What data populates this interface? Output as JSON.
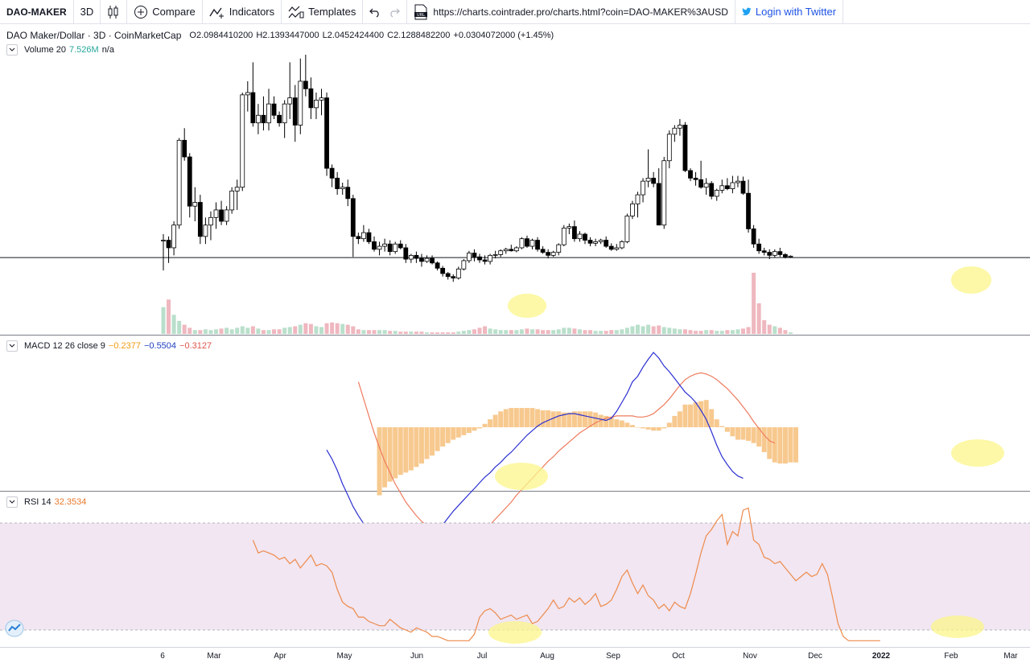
{
  "toolbar": {
    "symbol": "DAO-MAKER",
    "interval": "3D",
    "compare_label": "Compare",
    "indicators_label": "Indicators",
    "templates_label": "Templates",
    "url": "https://charts.cointrader.pro/charts.html?coin=DAO-MAKER%3AUSD",
    "twitter_label": "Login with Twitter"
  },
  "legend": {
    "title": "DAO Maker/Dollar · 3D · CoinMarketCap",
    "o_label": "O",
    "o_value": "2.0984410200",
    "h_label": "H",
    "h_value": "2.1393447000",
    "l_label": "L",
    "l_value": "2.0452424400",
    "c_label": "C",
    "c_value": "2.1288482200",
    "change": "+0.0304072000 (+1.45%)",
    "volume_name": "Volume 20",
    "volume_value": "7.526M",
    "volume_ma": "n/a",
    "macd_name": "MACD 12 26 close 9",
    "macd_hist": "−0.2377",
    "macd_line": "−0.5504",
    "macd_signal": "−0.3127",
    "rsi_name": "RSI 14",
    "rsi_value": "32.3534"
  },
  "x_axis": [
    "6",
    "Mar",
    "Apr",
    "May",
    "Jun",
    "Jul",
    "Aug",
    "Sep",
    "Oct",
    "Nov",
    "Dec",
    "2022",
    "Feb",
    "Mar"
  ],
  "colors": {
    "up_body": "#ffffff",
    "down_body": "#000000",
    "wick": "#000000",
    "vol_up": "#b9dfcb",
    "vol_down": "#efb7bf",
    "macd_line": "#2b2fd1",
    "signal_line": "#ee7b5e",
    "hist": "#f7c98f",
    "rsi_line": "#ee8a4c",
    "rsi_band": "#f1e6f1",
    "highlight": "#fbf58a",
    "macd_hist_text": "#f39c12",
    "macd_line_text": "#1f3fc1",
    "macd_signal_text": "#e0544c",
    "volume_value_text": "#26a69a",
    "rsi_value_text": "#e8772a"
  },
  "chart_data": {
    "type": "candlestick",
    "interval": "3D",
    "horizontal_line": 1.87,
    "candles": [
      [
        2.1,
        2.18,
        1.7,
        2.1
      ],
      [
        2.1,
        2.15,
        1.8,
        2.0
      ],
      [
        2.0,
        2.35,
        1.9,
        2.3
      ],
      [
        2.3,
        3.45,
        2.25,
        3.42
      ],
      [
        3.42,
        3.58,
        3.15,
        3.2
      ],
      [
        3.2,
        3.25,
        2.4,
        2.55
      ],
      [
        2.55,
        2.8,
        2.35,
        2.6
      ],
      [
        2.6,
        2.7,
        2.05,
        2.15
      ],
      [
        2.15,
        2.4,
        2.05,
        2.3
      ],
      [
        2.3,
        2.48,
        2.1,
        2.4
      ],
      [
        2.4,
        2.6,
        2.25,
        2.5
      ],
      [
        2.5,
        2.62,
        2.3,
        2.35
      ],
      [
        2.35,
        2.55,
        2.3,
        2.5
      ],
      [
        2.5,
        2.8,
        2.45,
        2.75
      ],
      [
        2.75,
        2.9,
        2.5,
        2.8
      ],
      [
        2.8,
        4.05,
        2.75,
        4.02
      ],
      [
        4.02,
        4.2,
        3.8,
        4.05
      ],
      [
        4.05,
        4.45,
        3.6,
        3.65
      ],
      [
        3.65,
        3.9,
        3.5,
        3.75
      ],
      [
        3.75,
        4.0,
        3.55,
        3.65
      ],
      [
        3.65,
        4.1,
        3.55,
        3.9
      ],
      [
        3.9,
        4.0,
        3.7,
        3.75
      ],
      [
        3.75,
        3.8,
        3.6,
        3.65
      ],
      [
        3.65,
        3.95,
        3.45,
        3.9
      ],
      [
        3.9,
        4.45,
        3.7,
        3.98
      ],
      [
        3.98,
        4.15,
        3.4,
        3.62
      ],
      [
        3.62,
        4.5,
        3.5,
        4.2
      ],
      [
        4.2,
        4.55,
        4.0,
        4.1
      ],
      [
        4.1,
        4.25,
        3.7,
        3.85
      ],
      [
        3.85,
        4.05,
        3.7,
        3.95
      ],
      [
        3.95,
        4.1,
        3.75,
        3.98
      ],
      [
        3.98,
        4.05,
        2.95,
        3.05
      ],
      [
        3.05,
        3.1,
        2.8,
        2.92
      ],
      [
        2.92,
        3.0,
        2.7,
        2.78
      ],
      [
        2.78,
        2.86,
        2.7,
        2.8
      ],
      [
        2.8,
        2.9,
        2.55,
        2.65
      ],
      [
        2.65,
        2.7,
        1.88,
        2.15
      ],
      [
        2.15,
        2.2,
        2.05,
        2.12
      ],
      [
        2.12,
        2.3,
        2.08,
        2.2
      ],
      [
        2.2,
        2.25,
        2.05,
        2.08
      ],
      [
        2.08,
        2.15,
        1.95,
        1.98
      ],
      [
        1.98,
        2.08,
        1.9,
        2.02
      ],
      [
        2.02,
        2.12,
        1.95,
        2.05
      ],
      [
        2.05,
        2.1,
        1.9,
        1.95
      ],
      [
        1.95,
        2.08,
        1.92,
        2.05
      ],
      [
        2.05,
        2.1,
        1.98,
        2.0
      ],
      [
        2.0,
        2.05,
        1.8,
        1.85
      ],
      [
        1.85,
        1.92,
        1.8,
        1.9
      ],
      [
        1.9,
        1.95,
        1.8,
        1.86
      ],
      [
        1.86,
        1.92,
        1.75,
        1.82
      ],
      [
        1.82,
        1.9,
        1.8,
        1.86
      ],
      [
        1.86,
        1.9,
        1.78,
        1.8
      ],
      [
        1.8,
        1.82,
        1.7,
        1.73
      ],
      [
        1.73,
        1.76,
        1.62,
        1.66
      ],
      [
        1.66,
        1.68,
        1.58,
        1.62
      ],
      [
        1.62,
        1.65,
        1.55,
        1.6
      ],
      [
        1.6,
        1.75,
        1.58,
        1.72
      ],
      [
        1.72,
        1.85,
        1.7,
        1.83
      ],
      [
        1.83,
        1.96,
        1.8,
        1.93
      ],
      [
        1.93,
        1.98,
        1.82,
        1.88
      ],
      [
        1.88,
        1.92,
        1.8,
        1.84
      ],
      [
        1.84,
        1.9,
        1.78,
        1.82
      ],
      [
        1.82,
        1.92,
        1.78,
        1.9
      ],
      [
        1.9,
        1.96,
        1.86,
        1.91
      ],
      [
        1.91,
        1.98,
        1.88,
        1.96
      ],
      [
        1.96,
        2.0,
        1.92,
        1.98
      ],
      [
        1.98,
        2.04,
        1.95,
        1.96
      ],
      [
        1.96,
        2.02,
        1.94,
        2.0
      ],
      [
        2.0,
        2.14,
        1.98,
        2.12
      ],
      [
        2.12,
        2.16,
        2.0,
        2.02
      ],
      [
        2.02,
        2.12,
        1.98,
        2.1
      ],
      [
        2.1,
        2.14,
        1.95,
        1.98
      ],
      [
        1.98,
        2.02,
        1.92,
        1.94
      ],
      [
        1.94,
        1.98,
        1.86,
        1.9
      ],
      [
        1.9,
        1.96,
        1.88,
        1.94
      ],
      [
        1.94,
        2.06,
        1.9,
        2.04
      ],
      [
        2.04,
        2.3,
        2.02,
        2.26
      ],
      [
        2.26,
        2.32,
        2.18,
        2.28
      ],
      [
        2.28,
        2.36,
        2.08,
        2.12
      ],
      [
        2.12,
        2.22,
        2.08,
        2.18
      ],
      [
        2.18,
        2.2,
        2.05,
        2.1
      ],
      [
        2.1,
        2.14,
        2.02,
        2.06
      ],
      [
        2.06,
        2.12,
        2.02,
        2.08
      ],
      [
        2.08,
        2.12,
        2.05,
        2.1
      ],
      [
        2.1,
        2.15,
        2.0,
        2.02
      ],
      [
        2.02,
        2.06,
        1.96,
        1.98
      ],
      [
        1.98,
        2.05,
        1.96,
        2.0
      ],
      [
        2.0,
        2.1,
        1.98,
        2.08
      ],
      [
        2.08,
        2.45,
        2.06,
        2.42
      ],
      [
        2.42,
        2.62,
        2.38,
        2.58
      ],
      [
        2.58,
        2.74,
        2.4,
        2.7
      ],
      [
        2.7,
        2.92,
        2.6,
        2.88
      ],
      [
        2.88,
        3.3,
        2.8,
        2.92
      ],
      [
        2.92,
        3.0,
        2.8,
        2.85
      ],
      [
        2.85,
        3.05,
        2.3,
        2.3
      ],
      [
        2.3,
        3.2,
        2.25,
        3.15
      ],
      [
        3.15,
        3.55,
        3.05,
        3.5
      ],
      [
        3.5,
        3.62,
        3.4,
        3.58
      ],
      [
        3.58,
        3.7,
        3.48,
        3.62
      ],
      [
        3.62,
        3.66,
        3.0,
        3.02
      ],
      [
        3.02,
        3.05,
        2.88,
        2.92
      ],
      [
        2.92,
        3.0,
        2.82,
        2.9
      ],
      [
        2.9,
        3.15,
        2.78,
        2.8
      ],
      [
        2.8,
        2.92,
        2.7,
        2.85
      ],
      [
        2.85,
        2.88,
        2.64,
        2.68
      ],
      [
        2.68,
        2.78,
        2.62,
        2.76
      ],
      [
        2.76,
        2.9,
        2.72,
        2.82
      ],
      [
        2.82,
        2.92,
        2.76,
        2.78
      ],
      [
        2.78,
        2.95,
        2.72,
        2.86
      ],
      [
        2.86,
        2.95,
        2.8,
        2.88
      ],
      [
        2.88,
        2.94,
        2.7,
        2.72
      ],
      [
        2.72,
        2.9,
        2.2,
        2.25
      ],
      [
        2.25,
        2.3,
        2.0,
        2.05
      ],
      [
        2.05,
        2.12,
        1.92,
        1.96
      ],
      [
        1.96,
        2.0,
        1.9,
        1.94
      ],
      [
        1.94,
        1.98,
        1.85,
        1.9
      ],
      [
        1.9,
        1.98,
        1.87,
        1.95
      ],
      [
        1.95,
        2.0,
        1.88,
        1.91
      ],
      [
        1.91,
        1.93,
        1.86,
        1.88
      ],
      [
        1.88,
        1.9,
        1.87,
        1.89
      ]
    ],
    "volume": [
      0.35,
      0.45,
      0.25,
      0.17,
      0.12,
      0.08,
      0.05,
      0.05,
      0.06,
      0.05,
      0.06,
      0.07,
      0.08,
      0.06,
      0.08,
      0.1,
      0.08,
      0.1,
      0.07,
      0.05,
      0.05,
      0.06,
      0.06,
      0.08,
      0.09,
      0.1,
      0.12,
      0.14,
      0.13,
      0.1,
      0.09,
      0.14,
      0.15,
      0.14,
      0.13,
      0.12,
      0.1,
      0.06,
      0.05,
      0.05,
      0.05,
      0.05,
      0.05,
      0.04,
      0.04,
      0.03,
      0.03,
      0.03,
      0.03,
      0.03,
      0.02,
      0.02,
      0.02,
      0.02,
      0.02,
      0.02,
      0.03,
      0.04,
      0.05,
      0.06,
      0.08,
      0.1,
      0.07,
      0.06,
      0.05,
      0.05,
      0.05,
      0.05,
      0.06,
      0.07,
      0.06,
      0.06,
      0.05,
      0.05,
      0.05,
      0.06,
      0.08,
      0.08,
      0.07,
      0.06,
      0.05,
      0.05,
      0.04,
      0.04,
      0.04,
      0.05,
      0.05,
      0.06,
      0.08,
      0.1,
      0.12,
      0.1,
      0.12,
      0.1,
      0.11,
      0.09,
      0.08,
      0.07,
      0.06,
      0.06,
      0.05,
      0.04,
      0.04,
      0.05,
      0.05,
      0.04,
      0.04,
      0.05,
      0.05,
      0.06,
      0.07,
      0.09,
      0.8,
      0.4,
      0.18,
      0.12,
      0.1,
      0.08,
      0.05,
      0.02
    ],
    "macd": [
      -0.2,
      -0.28,
      -0.38,
      -0.5,
      -0.6,
      -0.7,
      -0.78,
      -0.85,
      -0.9,
      -0.94,
      -0.97,
      -0.99,
      -1.0,
      -1.01,
      -1.01,
      -1.02,
      -1.02,
      -1.02,
      -1.01,
      -1.0,
      -0.97,
      -0.92,
      -0.86,
      -0.8,
      -0.74,
      -0.69,
      -0.64,
      -0.59,
      -0.54,
      -0.49,
      -0.44,
      -0.4,
      -0.35,
      -0.31,
      -0.26,
      -0.22,
      -0.17,
      -0.12,
      -0.07,
      -0.03,
      0.01,
      0.04,
      0.06,
      0.08,
      0.1,
      0.11,
      0.12,
      0.12,
      0.11,
      0.1,
      0.09,
      0.08,
      0.07,
      0.06,
      0.08,
      0.14,
      0.22,
      0.3,
      0.4,
      0.45,
      0.53,
      0.6,
      0.66,
      0.61,
      0.54,
      0.49,
      0.43,
      0.37,
      0.31,
      0.27,
      0.22,
      0.15,
      0.07,
      -0.04,
      -0.16,
      -0.26,
      -0.33,
      -0.39,
      -0.43,
      -0.45
    ],
    "macd_signal": [
      0.4,
      0.25,
      0.1,
      -0.05,
      -0.18,
      -0.3,
      -0.4,
      -0.5,
      -0.58,
      -0.66,
      -0.72,
      -0.78,
      -0.83,
      -0.87,
      -0.9,
      -0.93,
      -0.95,
      -0.97,
      -0.98,
      -0.99,
      -1.0,
      -0.99,
      -0.97,
      -0.94,
      -0.9,
      -0.86,
      -0.81,
      -0.76,
      -0.71,
      -0.66,
      -0.6,
      -0.55,
      -0.5,
      -0.45,
      -0.4,
      -0.35,
      -0.3,
      -0.26,
      -0.21,
      -0.17,
      -0.13,
      -0.09,
      -0.05,
      -0.02,
      0.01,
      0.04,
      0.06,
      0.08,
      0.09,
      0.1,
      0.1,
      0.1,
      0.1,
      0.09,
      0.09,
      0.1,
      0.12,
      0.16,
      0.2,
      0.25,
      0.31,
      0.37,
      0.42,
      0.45,
      0.47,
      0.48,
      0.47,
      0.45,
      0.42,
      0.38,
      0.34,
      0.29,
      0.24,
      0.18,
      0.12,
      0.05,
      -0.01,
      -0.07,
      -0.12,
      -0.14
    ],
    "macd_hist": [
      -0.6,
      -0.53,
      -0.48,
      -0.45,
      -0.42,
      -0.4,
      -0.38,
      -0.35,
      -0.32,
      -0.28,
      -0.25,
      -0.21,
      -0.17,
      -0.14,
      -0.11,
      -0.09,
      -0.07,
      -0.05,
      -0.03,
      -0.01,
      0.03,
      0.07,
      0.11,
      0.14,
      0.16,
      0.17,
      0.17,
      0.17,
      0.17,
      0.17,
      0.16,
      0.15,
      0.15,
      0.14,
      0.14,
      0.13,
      0.13,
      0.14,
      0.14,
      0.14,
      0.14,
      0.13,
      0.11,
      0.1,
      0.09,
      0.07,
      0.06,
      0.04,
      0.02,
      0.0,
      -0.01,
      -0.02,
      -0.03,
      -0.03,
      -0.01,
      0.04,
      0.1,
      0.14,
      0.2,
      0.2,
      0.22,
      0.23,
      0.24,
      0.16,
      0.07,
      0.01,
      -0.04,
      -0.08,
      -0.11,
      -0.11,
      -0.12,
      -0.14,
      -0.17,
      -0.22,
      -0.28,
      -0.31,
      -0.32,
      -0.32,
      -0.31,
      -0.31
    ],
    "rsi": [
      72,
      66,
      67,
      66,
      65,
      63,
      64,
      61,
      63,
      59,
      62,
      65,
      60,
      61,
      60,
      57,
      49,
      43,
      41,
      40,
      36,
      36,
      34,
      33,
      32,
      32,
      35,
      33,
      31,
      30,
      29,
      31,
      30,
      29,
      27,
      27,
      26,
      24,
      22,
      21,
      22,
      23,
      28,
      36,
      39,
      40,
      38,
      35,
      36,
      37,
      35,
      36,
      37,
      33,
      34,
      37,
      40,
      44,
      40,
      41,
      45,
      43,
      45,
      42,
      44,
      47,
      41,
      42,
      44,
      49,
      55,
      58,
      52,
      47,
      51,
      46,
      44,
      40,
      42,
      39,
      43,
      41,
      40,
      47,
      56,
      66,
      74,
      77,
      81,
      84,
      70,
      76,
      74,
      86,
      87,
      72,
      70,
      64,
      63,
      61,
      62,
      59,
      56,
      53,
      55,
      57,
      55,
      56,
      61,
      56,
      45,
      33,
      27,
      24,
      22,
      23,
      21,
      22,
      22,
      21
    ]
  }
}
